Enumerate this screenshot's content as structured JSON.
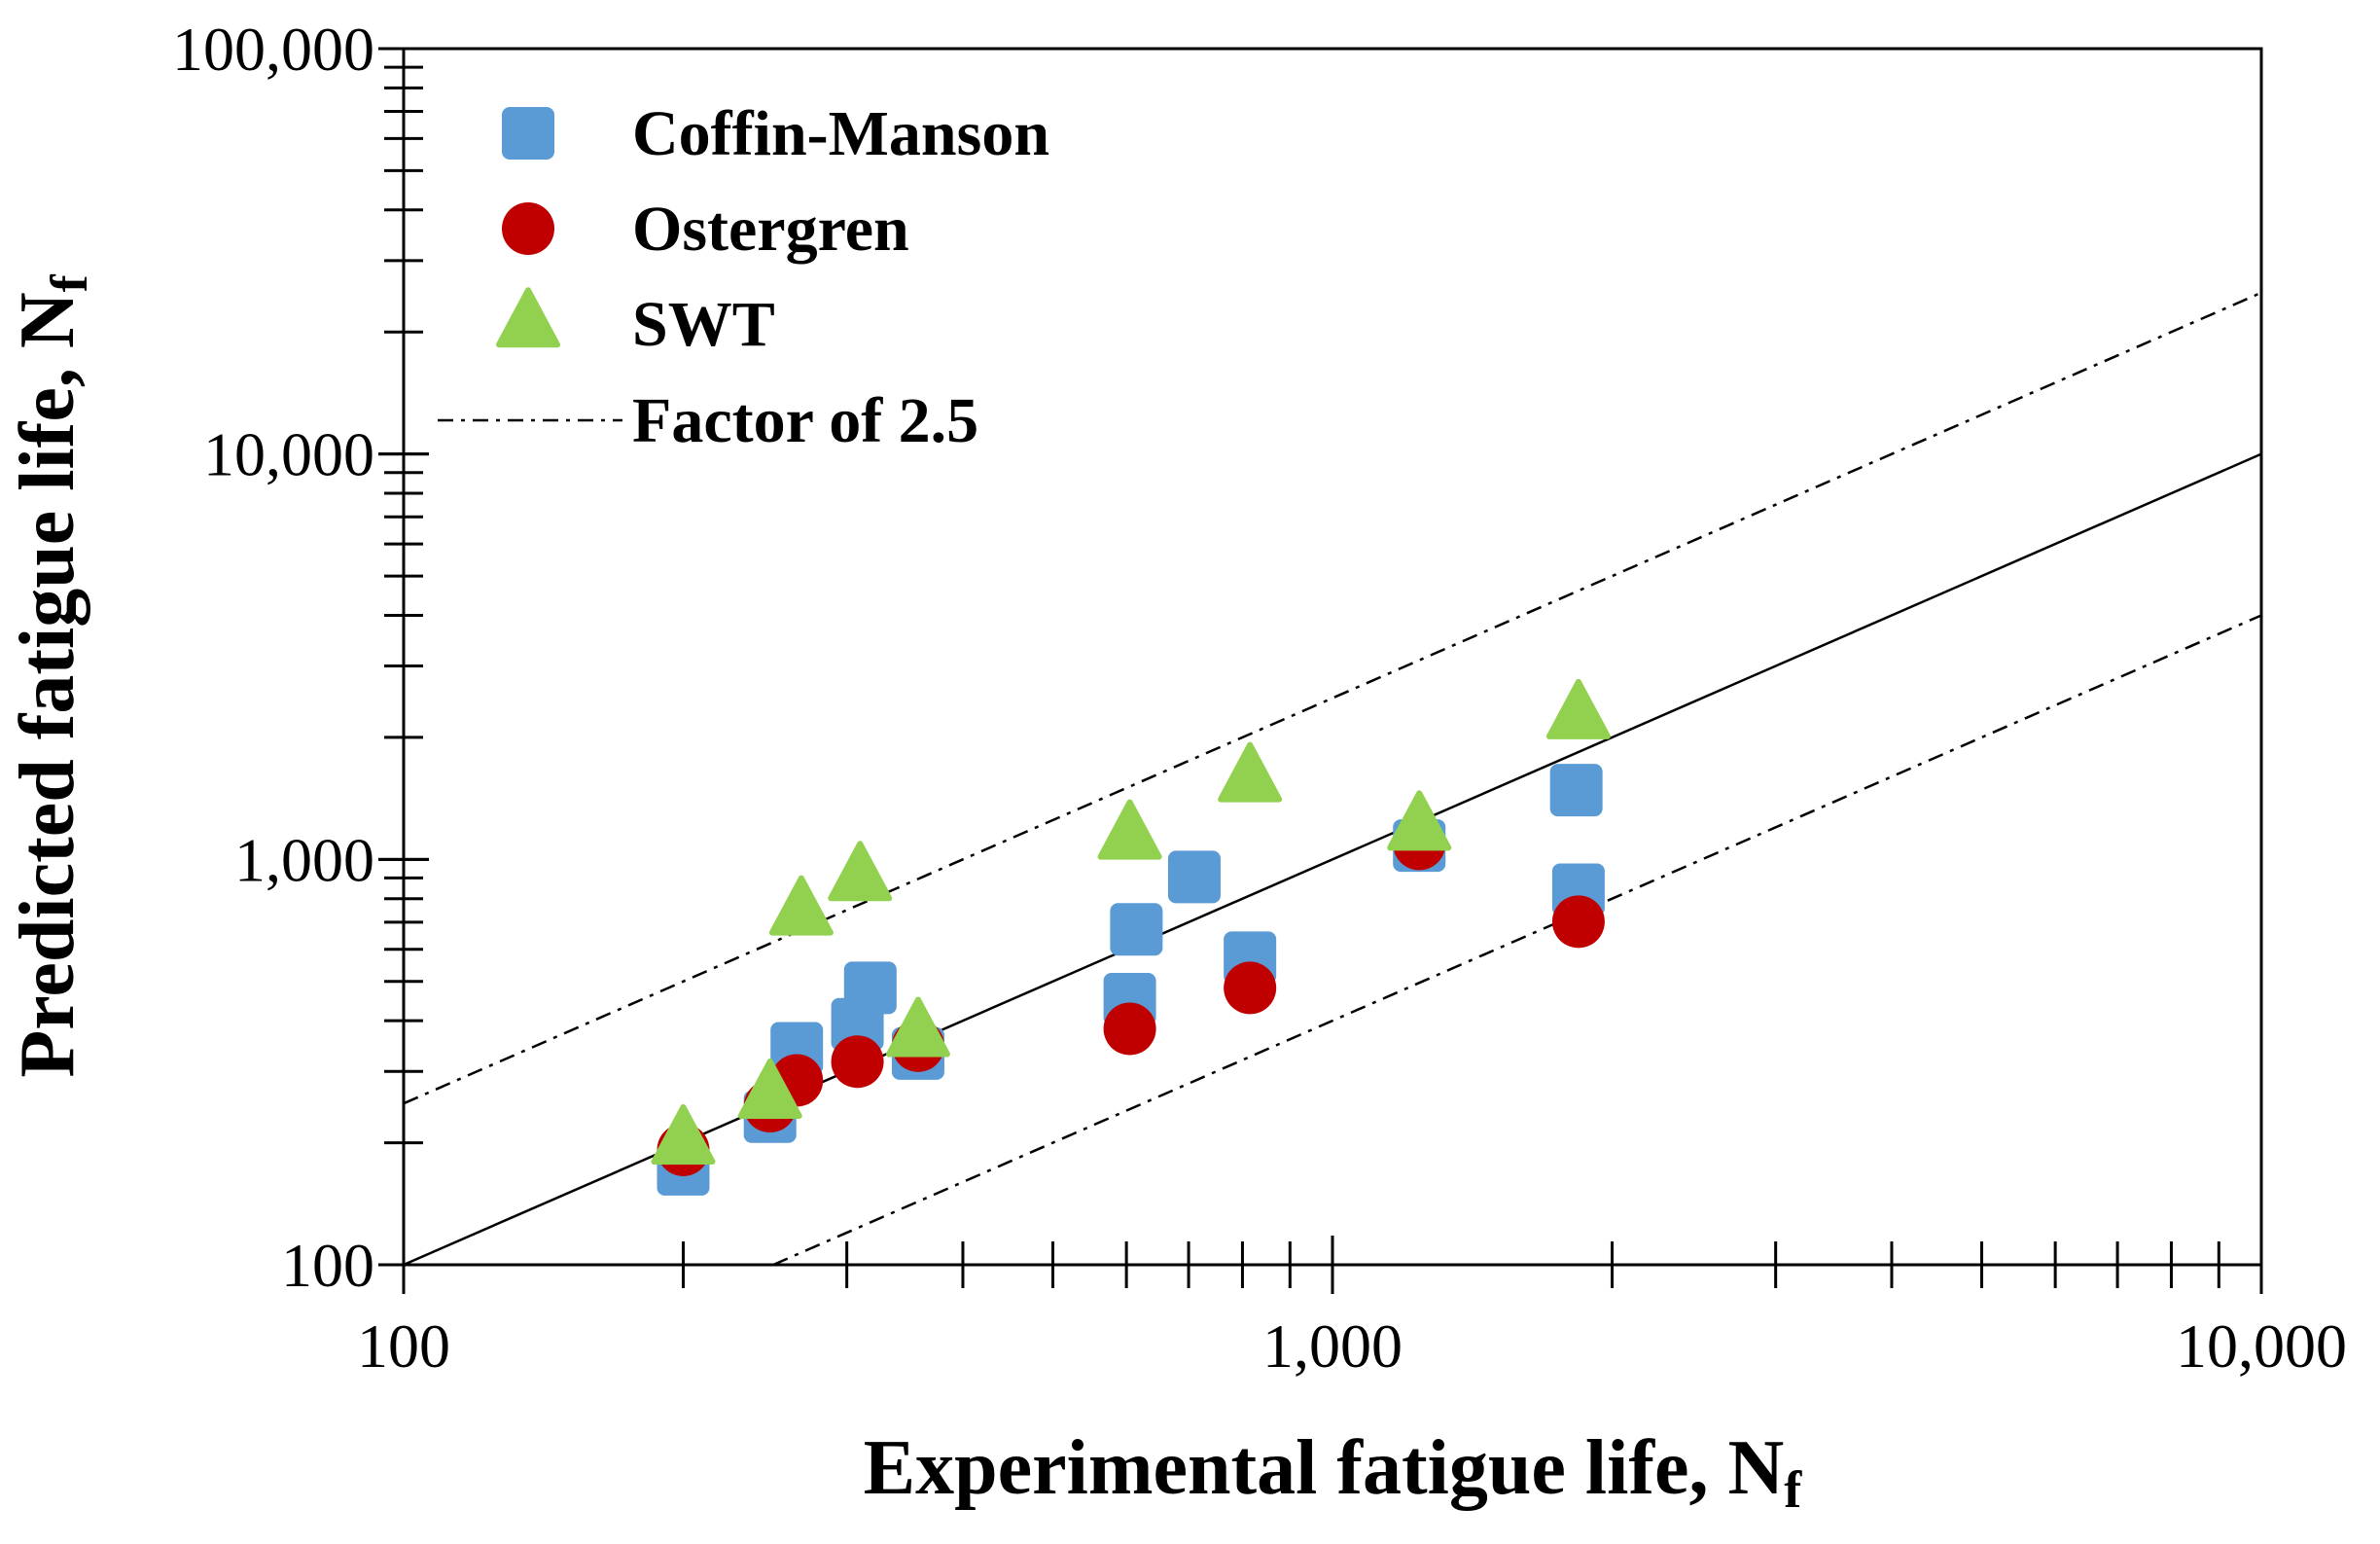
{
  "chart_data": {
    "type": "scatter",
    "xscale": "log",
    "yscale": "log",
    "xlim": [
      100,
      10000
    ],
    "ylim": [
      100,
      100000
    ],
    "xlabel": "Experimental fatigue life, N",
    "xlabel_sub": "f",
    "ylabel": "Predicted fatigue life, N",
    "ylabel_sub": "f",
    "x_tick_labels": [
      {
        "value": 100,
        "label": "100"
      },
      {
        "value": 1000,
        "label": "1,000"
      },
      {
        "value": 10000,
        "label": "10,000"
      }
    ],
    "y_tick_labels": [
      {
        "value": 100,
        "label": "100"
      },
      {
        "value": 1000,
        "label": "1,000"
      },
      {
        "value": 10000,
        "label": "10,000"
      },
      {
        "value": 100000,
        "label": "100,000"
      }
    ],
    "legend_position": "top-left",
    "series": [
      {
        "name": "Coffin-Manson",
        "marker": "square",
        "color": "#5B9BD5",
        "points": [
          [
            200,
            172
          ],
          [
            248,
            232
          ],
          [
            265,
            342
          ],
          [
            308,
            392
          ],
          [
            318,
            482
          ],
          [
            358,
            332
          ],
          [
            605,
            452
          ],
          [
            615,
            672
          ],
          [
            710,
            905
          ],
          [
            815,
            572
          ],
          [
            1240,
            1082
          ],
          [
            1830,
            1482
          ],
          [
            1840,
            842
          ]
        ]
      },
      {
        "name": "Ostergren",
        "marker": "circle",
        "color": "#C00000",
        "points": [
          [
            200,
            192
          ],
          [
            248,
            246
          ],
          [
            265,
            285
          ],
          [
            308,
            317
          ],
          [
            358,
            347
          ],
          [
            605,
            382
          ],
          [
            815,
            482
          ],
          [
            1240,
            1092
          ],
          [
            1840,
            702
          ]
        ]
      },
      {
        "name": "SWT",
        "marker": "triangle",
        "color": "#92D050",
        "points": [
          [
            200,
            202
          ],
          [
            248,
            262
          ],
          [
            268,
            742
          ],
          [
            310,
            902
          ],
          [
            358,
            372
          ],
          [
            605,
            1142
          ],
          [
            815,
            1582
          ],
          [
            1240,
            1202
          ],
          [
            1840,
            2262
          ]
        ]
      }
    ],
    "reference_lines": [
      {
        "name": "1:1",
        "style": "solid",
        "from": [
          100,
          100
        ],
        "to": [
          10000,
          10000
        ]
      },
      {
        "name": "Factor of 2.5 (upper)",
        "style": "dashdot",
        "from": [
          100,
          250
        ],
        "to": [
          10000,
          25000
        ]
      },
      {
        "name": "Factor of 2.5 (lower)",
        "style": "dashdot",
        "from": [
          250,
          100
        ],
        "to": [
          10000,
          4000
        ]
      }
    ],
    "legend_line_label": "Factor of 2.5"
  }
}
